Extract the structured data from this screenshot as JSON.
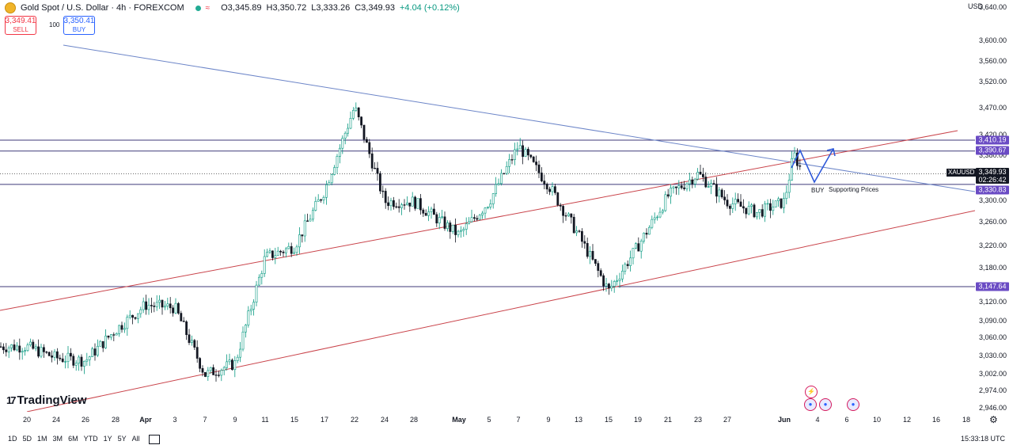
{
  "header": {
    "title": "Gold Spot / U.S. Dollar · 4h · FOREXCOM",
    "open": "O3,345.89",
    "high": "H3,350.72",
    "low": "L3,333.26",
    "close": "C3,349.93",
    "change": "+4.04 (+0.12%)"
  },
  "trade": {
    "sell_price": "3,349.41",
    "sell_label": "SELL",
    "spread": "100",
    "buy_price": "3,350.41",
    "buy_label": "BUY"
  },
  "currency": "USD",
  "price_axis": {
    "ticks": [
      "3,640.00",
      "3,600.00",
      "3,560.00",
      "3,520.00",
      "3,470.00",
      "3,420.00",
      "3,380.00",
      "3,300.00",
      "3,260.00",
      "3,220.00",
      "3,180.00",
      "3,120.00",
      "3,090.00",
      "3,060.00",
      "3,030.00",
      "3,002.00",
      "2,974.00",
      "2,946.00"
    ]
  },
  "time_axis": {
    "labels": [
      "20",
      "24",
      "26",
      "28",
      "Apr",
      "3",
      "7",
      "9",
      "11",
      "15",
      "17",
      "22",
      "24",
      "28",
      "May",
      "5",
      "7",
      "9",
      "13",
      "15",
      "19",
      "21",
      "23",
      "27",
      "Jun",
      "4",
      "6",
      "10",
      "12",
      "16",
      "18"
    ]
  },
  "level_tags": {
    "l1": "3,410.19",
    "l2": "3,390.67",
    "l3": "3,330.83",
    "l4": "3,147.64"
  },
  "last_price": {
    "symbol": "XAUUSD",
    "price": "3,349.93",
    "countdown": "02:26:42"
  },
  "annotations": {
    "buy": "BUY",
    "supporting": "Supporting Prices"
  },
  "branding": {
    "logo_mark": "17",
    "logo_text": "TradingView"
  },
  "periods": [
    "1D",
    "5D",
    "1M",
    "3M",
    "6M",
    "YTD",
    "1Y",
    "5Y",
    "All"
  ],
  "utc_time": "15:33:18 UTC",
  "colors": {
    "up": "#089981",
    "down": "#131722",
    "level_line": "#3f3a7a",
    "level_tag": "#6a4bc4",
    "channel": "#c9434a",
    "trend": "#6c85c8",
    "projection": "#2f59d9"
  },
  "chart_data": {
    "type": "candlestick",
    "symbol": "XAUUSD",
    "interval": "4h",
    "ylim": [
      2940,
      3650
    ],
    "close_path": [
      {
        "x": "Mar 20",
        "y": 3040
      },
      {
        "x": "Mar 24",
        "y": 3020
      },
      {
        "x": "Mar 26",
        "y": 3015
      },
      {
        "x": "Mar 28",
        "y": 3070
      },
      {
        "x": "Apr 1",
        "y": 3115
      },
      {
        "x": "Apr 3",
        "y": 3110
      },
      {
        "x": "Apr 7",
        "y": 2990
      },
      {
        "x": "Apr 9",
        "y": 3010
      },
      {
        "x": "Apr 11",
        "y": 3200
      },
      {
        "x": "Apr 15",
        "y": 3220
      },
      {
        "x": "Apr 17",
        "y": 3320
      },
      {
        "x": "Apr 22",
        "y": 3470
      },
      {
        "x": "Apr 24",
        "y": 3300
      },
      {
        "x": "Apr 28",
        "y": 3300
      },
      {
        "x": "May 1",
        "y": 3240
      },
      {
        "x": "May 5",
        "y": 3300
      },
      {
        "x": "May 7",
        "y": 3400
      },
      {
        "x": "May 9",
        "y": 3330
      },
      {
        "x": "May 13",
        "y": 3240
      },
      {
        "x": "May 15",
        "y": 3140
      },
      {
        "x": "May 19",
        "y": 3220
      },
      {
        "x": "May 21",
        "y": 3310
      },
      {
        "x": "May 23",
        "y": 3350
      },
      {
        "x": "May 27",
        "y": 3300
      },
      {
        "x": "May 29",
        "y": 3280
      },
      {
        "x": "Jun 1",
        "y": 3300
      },
      {
        "x": "Jun 2",
        "y": 3385
      },
      {
        "x": "Jun 3",
        "y": 3349.93
      }
    ],
    "horizontal_levels": [
      3410.19,
      3390.67,
      3330.83,
      3147.64
    ],
    "last_price": 3349.93
  }
}
